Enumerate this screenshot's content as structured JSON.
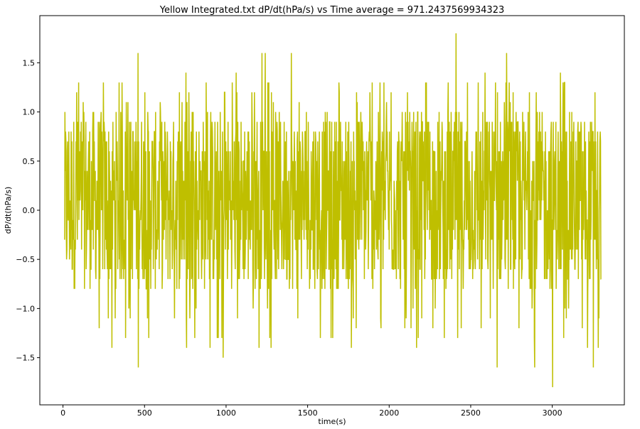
{
  "chart_data": {
    "type": "line",
    "title": "Yellow Integrated.txt  dP/dt(hPa/s) vs Time  average = 971.2437569934323",
    "xlabel": "time(s)",
    "ylabel": "dP/dt(hPa/s)",
    "xlim": [
      -142,
      3442
    ],
    "ylim": [
      -1.98,
      1.98
    ],
    "xticks": [
      0,
      500,
      1000,
      1500,
      2000,
      2500,
      3000
    ],
    "yticks": [
      -1.5,
      -1.0,
      -0.5,
      0.0,
      0.5,
      1.0,
      1.5
    ],
    "xtick_labels": [
      "0",
      "500",
      "1000",
      "1500",
      "2000",
      "2500",
      "3000"
    ],
    "ytick_labels": [
      "−1.5",
      "−1.0",
      "−0.5",
      "0.0",
      "0.5",
      "1.0",
      "1.5"
    ],
    "grid": false,
    "series": [
      {
        "color": "#bfbf00",
        "x_range": [
          10,
          3300
        ],
        "typical_range": [
          -0.8,
          1.0
        ],
        "max_points": [
          [
            460,
            1.6
          ],
          [
            1220,
            1.6
          ],
          [
            1240,
            1.6
          ],
          [
            1400,
            1.6
          ],
          [
            2410,
            1.8
          ],
          [
            2720,
            1.6
          ]
        ],
        "min_points": [
          [
            460,
            -1.6
          ],
          [
            980,
            -1.5
          ],
          [
            2660,
            -1.6
          ],
          [
            2890,
            -1.6
          ],
          [
            3000,
            -1.8
          ],
          [
            3250,
            -1.6
          ]
        ]
      }
    ]
  }
}
